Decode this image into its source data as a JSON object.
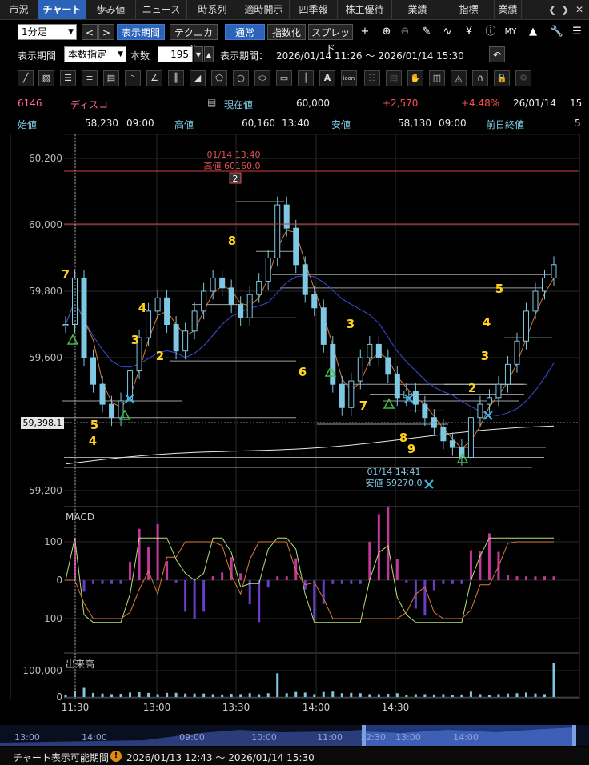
{
  "tabs": [
    "市況",
    "チャート",
    "歩み値",
    "ニュース",
    "時系列",
    "適時開示",
    "四季報",
    "株主優待",
    "業績",
    "指標",
    "業績"
  ],
  "toolbar": {
    "interval": "1分足",
    "display_period_btn": "表示期間",
    "technical_btn": "テクニカル",
    "normal_btn": "通常",
    "index_btn": "指数化",
    "spread_btn": "スプレッド"
  },
  "period": {
    "label": "表示期間",
    "mode": "本数指定",
    "count_label": "本数",
    "count": "195",
    "period_label": "表示期間：",
    "period_value": "2026/01/14 11:26 ～ 2026/01/14 15:30"
  },
  "quote": {
    "code": "6146",
    "name": "ディスコ",
    "current_label": "現在値",
    "current": "60,000",
    "change": "+2,570",
    "change_pct": "+4.48%",
    "date": "26/01/14",
    "time": "15",
    "open_label": "始値",
    "open": "58,230",
    "open_time": "09:00",
    "high_label": "高値",
    "high": "60,160",
    "high_time": "13:40",
    "low_label": "安値",
    "low": "58,130",
    "low_time": "09:00",
    "prev_close_label": "前日終値",
    "prev_close": "5"
  },
  "colors": {
    "up": "#7ec8e3",
    "down": "#7ec8e3",
    "accent": "#2a63b8",
    "pos": "#ff4d4d",
    "ma_orange": "#d87b3a",
    "ma_blue": "#3a4fd8",
    "label_yellow": "#ffd21f",
    "macd_pos": "#c0399a",
    "macd_neg": "#6a3cc8"
  },
  "chart_data": [
    {
      "type": "candlestick",
      "title": "",
      "y_ticks": [
        "60,200",
        "60,000",
        "59,800",
        "59,600",
        "59,200"
      ],
      "x_ticks": [
        "11:30",
        "13:00",
        "13:30",
        "14:00",
        "14:30"
      ],
      "current_price_tag": "59,398.1",
      "high_annotation": [
        "01/14 13:40",
        "高値 60160.0"
      ],
      "high_marker": "2",
      "low_annotation": [
        "01/14 14:41",
        "安値 59270.0"
      ],
      "count_labels": [
        "7",
        "4",
        "5",
        "4",
        "3",
        "2",
        "8",
        "3",
        "6",
        "7",
        "8",
        "9",
        "5",
        "4",
        "3",
        "2"
      ],
      "close_series": [
        59700,
        59840,
        59600,
        59520,
        59460,
        59420,
        59470,
        59560,
        59660,
        59740,
        59780,
        59700,
        59620,
        59680,
        59740,
        59800,
        59840,
        59810,
        59760,
        59720,
        59790,
        59830,
        59900,
        60060,
        59990,
        59880,
        59790,
        59750,
        59640,
        59520,
        59450,
        59530,
        59600,
        59640,
        59600,
        59550,
        59480,
        59500,
        59460,
        59420,
        59390,
        59350,
        59330,
        59300,
        59420,
        59460,
        59480,
        59520,
        59580,
        59650,
        59740,
        59800,
        59840,
        59880
      ]
    },
    {
      "type": "line",
      "title": "MACD",
      "y_ticks": [
        "100",
        "0",
        "-100"
      ]
    },
    {
      "type": "bar",
      "title": "出来高",
      "y_ticks": [
        "100,000",
        "0"
      ]
    }
  ],
  "navigator": {
    "labels": [
      "13:00",
      "14:00",
      "09:00",
      "10:00",
      "11:00",
      "12:30",
      "13:00",
      "14:00"
    ]
  },
  "footer": {
    "label": "チャート表示可能期間",
    "warn_icon": "!",
    "value": "2026/01/13 12:43 ～ 2026/01/14 15:30"
  }
}
